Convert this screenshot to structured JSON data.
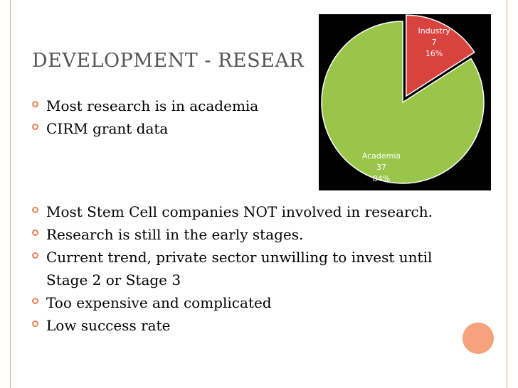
{
  "slide": {
    "title": "DEVELOPMENT - RESEAR",
    "bullets_top": [
      {
        "text": "Most research is in academia"
      },
      {
        "text": "CIRM grant data"
      }
    ],
    "bullets_bottom": [
      {
        "text": "Most Stem Cell companies NOT involved in research."
      },
      {
        "text": "Research is still in the early stages."
      },
      {
        "text": "Current trend, private sector unwilling to invest until Stage 2 or Stage 3"
      },
      {
        "text": "Too expensive and complicated"
      },
      {
        "text": "Low success rate"
      }
    ]
  },
  "chart_data": {
    "type": "pie",
    "title": "",
    "slices": [
      {
        "label": "Industry",
        "value": 7,
        "percent": "16%",
        "color": "#d9433f"
      },
      {
        "label": "Academia",
        "value": 37,
        "percent": "84%",
        "color": "#99c64a"
      }
    ],
    "exploded": "Industry",
    "legend": "none",
    "background": "#000000"
  },
  "colors": {
    "bullet": "#e8835a",
    "accent_circle": "#f6a27c",
    "side_line": "#e6a98a",
    "title": "#555555"
  }
}
